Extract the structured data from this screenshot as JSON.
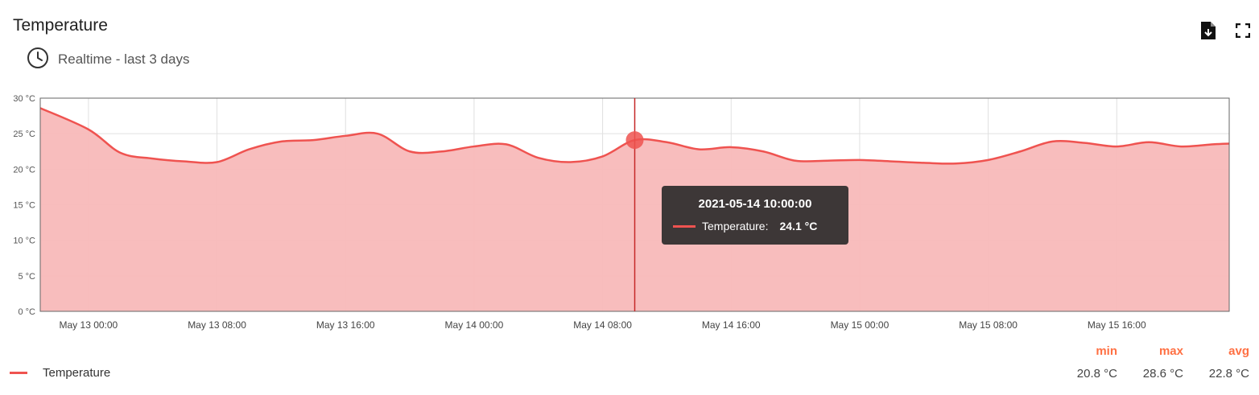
{
  "widget": {
    "title": "Temperature",
    "timewindow": "Realtime - last 3 days",
    "icons": {
      "clock": "clock-icon",
      "export": "file-export-icon",
      "fullscreen": "fullscreen-icon"
    }
  },
  "colors": {
    "series": "#ef5350",
    "fill": "#f8b9b9",
    "stat_label": "#ff7043"
  },
  "tooltip": {
    "time": "2021-05-14 10:00:00",
    "series_label": "Temperature:",
    "value": "24.1 °C"
  },
  "legend": {
    "series_name": "Temperature",
    "headers": {
      "min": "min",
      "max": "max",
      "avg": "avg"
    },
    "values": {
      "min": "20.8 °C",
      "max": "28.6 °C",
      "avg": "22.8 °C"
    }
  },
  "chart_data": {
    "type": "area",
    "title": "Temperature",
    "xlabel": "",
    "ylabel": "",
    "xlim": [
      "2021-05-12 21:00",
      "2021-05-15 23:00"
    ],
    "ylim": [
      0,
      30
    ],
    "grid": true,
    "legend_position": "bottom-left",
    "x_tick_labels": [
      "May 13 00:00",
      "May 13 08:00",
      "May 13 16:00",
      "May 14 00:00",
      "May 14 08:00",
      "May 14 16:00",
      "May 15 00:00",
      "May 15 08:00",
      "May 15 16:00"
    ],
    "y_tick_labels": [
      "0 °C",
      "5 °C",
      "10 °C",
      "15 °C",
      "20 °C",
      "25 °C",
      "30 °C"
    ],
    "y_ticks": [
      0,
      5,
      10,
      15,
      20,
      25,
      30
    ],
    "hover_x": "2021-05-14 10:00",
    "series": [
      {
        "name": "Temperature",
        "x": [
          "2021-05-12 21:00",
          "2021-05-13 00:00",
          "2021-05-13 02:00",
          "2021-05-13 04:00",
          "2021-05-13 06:00",
          "2021-05-13 08:00",
          "2021-05-13 10:00",
          "2021-05-13 12:00",
          "2021-05-13 14:00",
          "2021-05-13 16:00",
          "2021-05-13 18:00",
          "2021-05-13 20:00",
          "2021-05-13 22:00",
          "2021-05-14 00:00",
          "2021-05-14 02:00",
          "2021-05-14 04:00",
          "2021-05-14 06:00",
          "2021-05-14 08:00",
          "2021-05-14 10:00",
          "2021-05-14 12:00",
          "2021-05-14 14:00",
          "2021-05-14 16:00",
          "2021-05-14 18:00",
          "2021-05-14 20:00",
          "2021-05-14 22:00",
          "2021-05-15 00:00",
          "2021-05-15 02:00",
          "2021-05-15 04:00",
          "2021-05-15 06:00",
          "2021-05-15 08:00",
          "2021-05-15 10:00",
          "2021-05-15 12:00",
          "2021-05-15 14:00",
          "2021-05-15 16:00",
          "2021-05-15 18:00",
          "2021-05-15 20:00",
          "2021-05-15 22:00",
          "2021-05-15 23:00"
        ],
        "values": [
          28.6,
          25.6,
          22.3,
          21.5,
          21.1,
          21.0,
          22.8,
          23.9,
          24.1,
          24.7,
          25.0,
          22.5,
          22.5,
          23.2,
          23.5,
          21.6,
          21.0,
          21.8,
          24.1,
          23.8,
          22.8,
          23.1,
          22.5,
          21.2,
          21.2,
          21.3,
          21.1,
          20.9,
          20.8,
          21.3,
          22.5,
          23.9,
          23.7,
          23.2,
          23.8,
          23.2,
          23.5,
          23.6
        ]
      }
    ]
  }
}
